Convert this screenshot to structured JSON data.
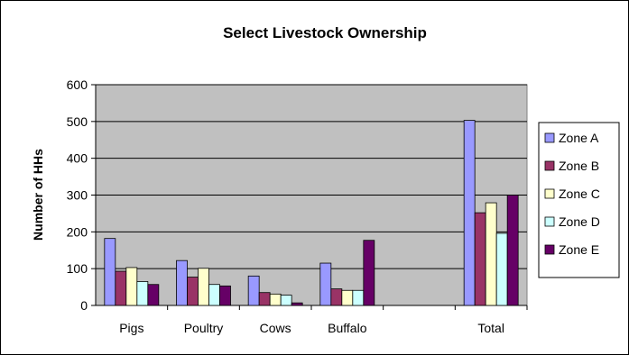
{
  "chart_data": {
    "type": "bar",
    "title": "Select Livestock Ownership",
    "xlabel": "",
    "ylabel": "Number of HHs",
    "ylim": [
      0,
      600
    ],
    "yticks": [
      0,
      100,
      200,
      300,
      400,
      500,
      600
    ],
    "categories": [
      "Pigs",
      "Poultry",
      "Cows",
      "Buffalo",
      "",
      "Total"
    ],
    "series": [
      {
        "name": "Zone A",
        "color": "#9999ff",
        "values": [
          182,
          122,
          80,
          115,
          null,
          503
        ]
      },
      {
        "name": "Zone B",
        "color": "#993366",
        "values": [
          93,
          77,
          35,
          45,
          null,
          252
        ]
      },
      {
        "name": "Zone C",
        "color": "#ffffcc",
        "values": [
          103,
          101,
          31,
          41,
          null,
          279
        ]
      },
      {
        "name": "Zone D",
        "color": "#ccffff",
        "values": [
          65,
          57,
          28,
          41,
          null,
          196
        ]
      },
      {
        "name": "Zone E",
        "color": "#660066",
        "values": [
          57,
          53,
          7,
          177,
          null,
          300
        ]
      }
    ],
    "plot_background": "#c0c0c0",
    "grid": true,
    "legend": "right"
  }
}
